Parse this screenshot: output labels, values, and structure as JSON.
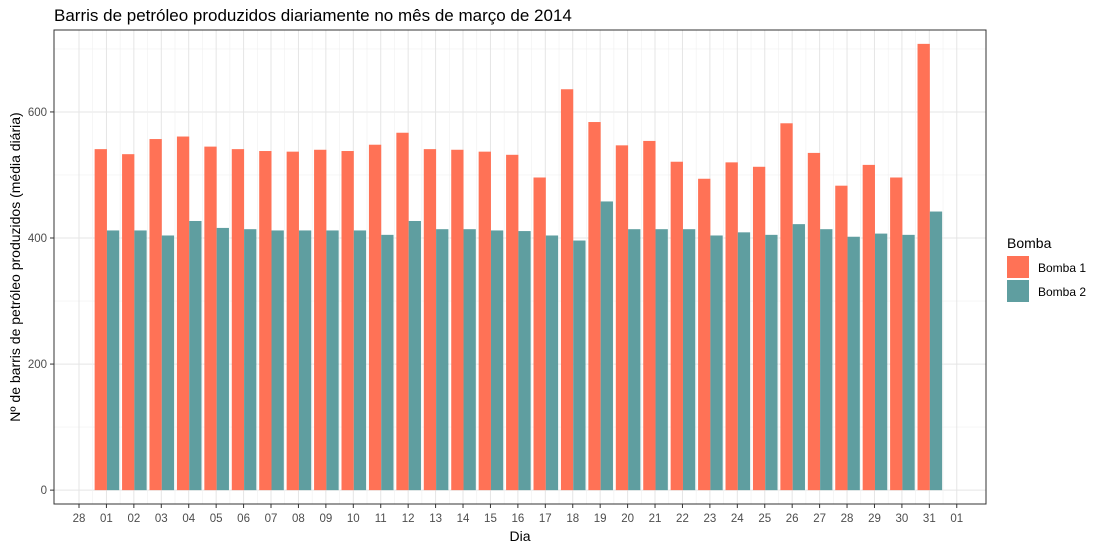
{
  "chart_data": {
    "type": "bar",
    "title": "Barris de petróleo produzidos diariamente no mês de março de 2014",
    "xlabel": "Dia",
    "ylabel": "Nº de barris de petróleo produzidos (média diária)",
    "ylim": [
      -22,
      730
    ],
    "yticks": [
      0,
      200,
      400,
      600
    ],
    "x_tick_labels": [
      "28",
      "01",
      "02",
      "03",
      "04",
      "05",
      "06",
      "07",
      "08",
      "09",
      "10",
      "11",
      "12",
      "13",
      "14",
      "15",
      "16",
      "17",
      "18",
      "19",
      "20",
      "21",
      "22",
      "23",
      "24",
      "25",
      "26",
      "27",
      "28",
      "29",
      "30",
      "31",
      "01"
    ],
    "categories": [
      "01",
      "02",
      "03",
      "04",
      "05",
      "06",
      "07",
      "08",
      "09",
      "10",
      "11",
      "12",
      "13",
      "14",
      "15",
      "16",
      "17",
      "18",
      "19",
      "20",
      "21",
      "22",
      "23",
      "24",
      "25",
      "26",
      "27",
      "28",
      "29",
      "30",
      "31"
    ],
    "series": [
      {
        "name": "Bomba 1",
        "color": "#FF7256",
        "values": [
          541,
          533,
          557,
          561,
          545,
          541,
          538,
          537,
          540,
          538,
          548,
          567,
          541,
          540,
          537,
          532,
          496,
          636,
          584,
          547,
          554,
          521,
          494,
          520,
          513,
          582,
          535,
          483,
          516,
          496,
          708
        ]
      },
      {
        "name": "Bomba 2",
        "color": "#5F9EA0",
        "values": [
          412,
          412,
          404,
          427,
          416,
          414,
          412,
          412,
          412,
          412,
          405,
          427,
          414,
          414,
          412,
          411,
          404,
          396,
          458,
          414,
          414,
          414,
          404,
          409,
          405,
          422,
          414,
          402,
          407,
          405,
          442
        ]
      }
    ],
    "legend": {
      "title": "Bomba",
      "position": "right"
    },
    "grid": true
  }
}
